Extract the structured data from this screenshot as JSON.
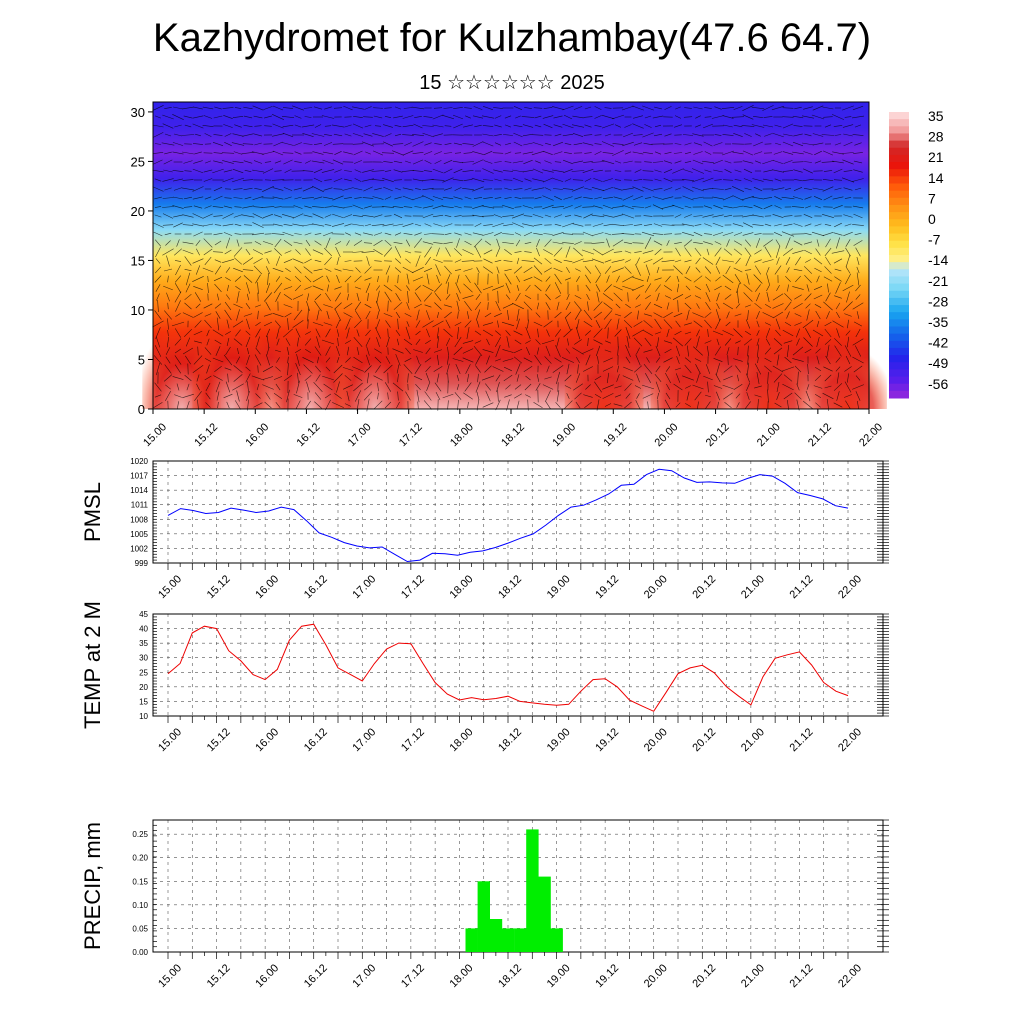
{
  "title": "Kazhydromet for Kulzhambay(47.6 64.7)",
  "subtitle": "15 ☆☆☆☆☆☆ 2025",
  "time_ticks": [
    "15.00",
    "15.12",
    "16.00",
    "16.12",
    "17.00",
    "17.12",
    "18.00",
    "18.12",
    "19.00",
    "19.12",
    "20.00",
    "20.12",
    "21.00",
    "21.12",
    "22.00"
  ],
  "chart_data": [
    {
      "type": "heatmap",
      "name": "cross-section",
      "x_ticks": [
        "15.00",
        "15.12",
        "16.00",
        "16.12",
        "17.00",
        "17.12",
        "18.00",
        "18.12",
        "19.00",
        "19.12",
        "20.00",
        "20.12",
        "21.00",
        "21.12",
        "22.00"
      ],
      "y_ticks": [
        "0",
        "5",
        "10",
        "15",
        "20",
        "25",
        "30"
      ],
      "ylim": [
        0,
        31
      ],
      "colorbar_labels": [
        "35",
        "28",
        "21",
        "14",
        "7",
        "0",
        "-7",
        "-14",
        "-21",
        "-28",
        "-35",
        "-42",
        "-49",
        "-56"
      ],
      "colorbar_range": [
        -60,
        40
      ],
      "temperature_bands": [
        {
          "t": 36
        },
        {
          "t": 30
        },
        {
          "t": 25
        },
        {
          "t": 18
        },
        {
          "t": 10
        },
        {
          "t": 3
        },
        {
          "t": -8
        },
        {
          "t": -20
        },
        {
          "t": -35
        },
        {
          "t": -50
        },
        {
          "t": -57
        },
        {
          "t": -50
        },
        {
          "t": -48
        }
      ],
      "wind_arrows": true
    },
    {
      "type": "line",
      "name": "PMSL",
      "ylabel": "PMSL",
      "y_ticks": [
        "1020",
        "1017",
        "1014",
        "1011",
        "1008",
        "1005",
        "1002",
        "999"
      ],
      "ylim": [
        999,
        1020
      ],
      "x_ticks": [
        "15.00",
        "15.12",
        "16.00",
        "16.12",
        "17.00",
        "17.12",
        "18.00",
        "18.12",
        "19.00",
        "19.12",
        "20.00",
        "20.12",
        "21.00",
        "21.12",
        "22.00"
      ],
      "color": "#0000ff",
      "values": [
        1008.8,
        1010.2,
        1009.8,
        1009.2,
        1009.4,
        1010.3,
        1009.9,
        1009.4,
        1009.7,
        1010.5,
        1010,
        1007.7,
        1005.2,
        1004.3,
        1003.2,
        1002.5,
        1002.1,
        1002.3,
        1000.8,
        999.3,
        999.6,
        1001,
        1000.9,
        1000.6,
        1001.2,
        1001.5,
        1002.2,
        1003.1,
        1004.1,
        1005,
        1006.8,
        1008.8,
        1010.5,
        1010.9,
        1012,
        1013.2,
        1015,
        1015.2,
        1017.2,
        1018.3,
        1018,
        1016.5,
        1015.6,
        1015.7,
        1015.5,
        1015.4,
        1016.4,
        1017.2,
        1016.9,
        1015.4,
        1013.5,
        1012.9,
        1012.2,
        1010.8,
        1010.3
      ]
    },
    {
      "type": "line",
      "name": "TEMP at 2 M",
      "ylabel": "TEMP at 2 M",
      "y_ticks": [
        "45",
        "40",
        "35",
        "30",
        "25",
        "20",
        "15",
        "10"
      ],
      "ylim": [
        10,
        45
      ],
      "x_ticks": [
        "15.00",
        "15.12",
        "16.00",
        "16.12",
        "17.00",
        "17.12",
        "18.00",
        "18.12",
        "19.00",
        "19.12",
        "20.00",
        "20.12",
        "21.00",
        "21.12",
        "22.00"
      ],
      "color": "#ee0000",
      "values": [
        24.5,
        28,
        38.5,
        40.8,
        40,
        32.4,
        28.9,
        24.2,
        22.5,
        26,
        36,
        40.8,
        41.5,
        34.4,
        26.5,
        24.3,
        22,
        28,
        33,
        35,
        34.8,
        28,
        21.5,
        17.5,
        15.5,
        16.3,
        15.6,
        16,
        16.8,
        15,
        14.5,
        14,
        13.7,
        14,
        18.5,
        22.5,
        22.8,
        20,
        15.5,
        13.5,
        11.6,
        18,
        24.5,
        26.5,
        27.4,
        24.8,
        20,
        16.8,
        13.8,
        23.5,
        29.8,
        31,
        32,
        27.5,
        21.5,
        18.5,
        17
      ]
    },
    {
      "type": "bar",
      "name": "PRECIP",
      "ylabel": "PRECIP, mm",
      "y_ticks": [
        "0.25",
        "0.20",
        "0.15",
        "0.10",
        "0.05",
        "0.00"
      ],
      "ylim": [
        0,
        0.28
      ],
      "x_ticks": [
        "15.00",
        "15.12",
        "16.00",
        "16.12",
        "17.00",
        "17.12",
        "18.00",
        "18.12",
        "19.00",
        "19.12",
        "20.00",
        "20.12",
        "21.00",
        "21.12",
        "22.00"
      ],
      "color": "#00ee00",
      "bars": [
        {
          "x": 18.125,
          "value": 0.05
        },
        {
          "x": 18.25,
          "value": 0.15
        },
        {
          "x": 18.375,
          "value": 0.07
        },
        {
          "x": 18.5,
          "value": 0.05
        },
        {
          "x": 18.625,
          "value": 0.05
        },
        {
          "x": 18.75,
          "value": 0.26
        },
        {
          "x": 18.875,
          "value": 0.16
        },
        {
          "x": 19.0,
          "value": 0.05
        }
      ]
    }
  ]
}
